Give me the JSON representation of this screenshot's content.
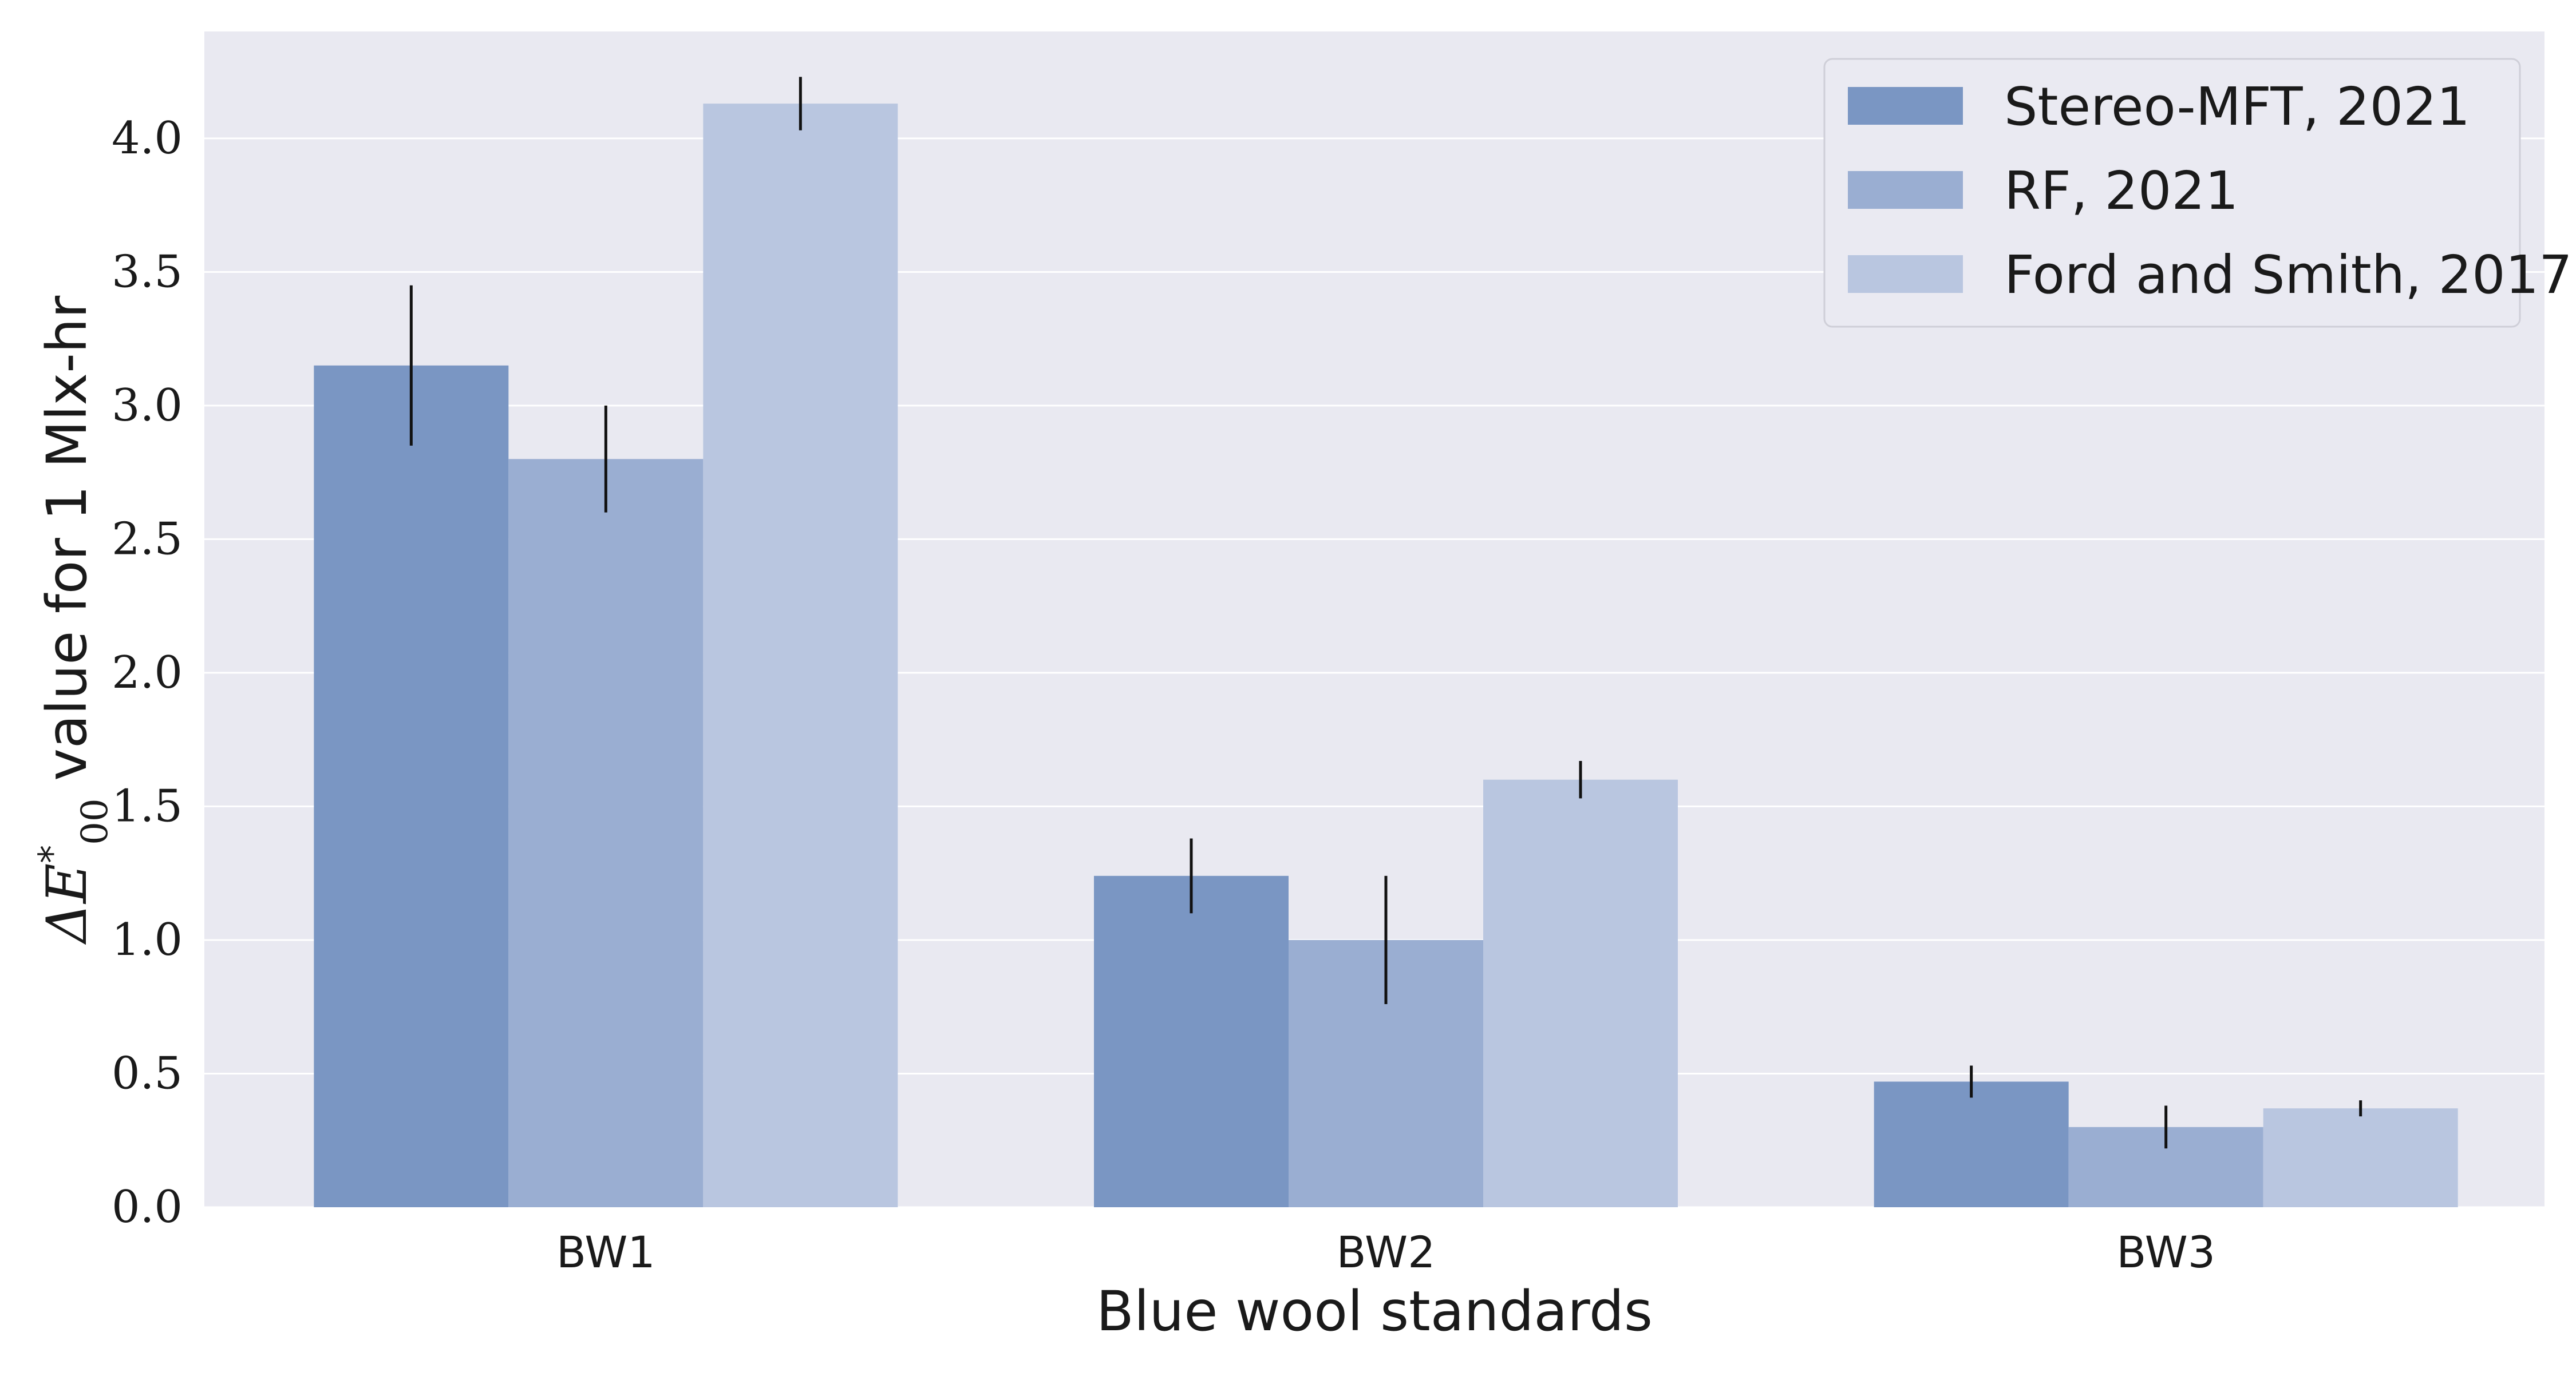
{
  "chart_data": {
    "type": "bar",
    "categories": [
      "BW1",
      "BW2",
      "BW3"
    ],
    "series": [
      {
        "name": "Stereo-MFT, 2021",
        "color": "#7a96c3",
        "values": [
          3.15,
          1.24,
          0.47
        ],
        "errors": [
          0.3,
          0.14,
          0.06
        ]
      },
      {
        "name": "RF, 2021",
        "color": "#9aaed2",
        "values": [
          2.8,
          1.0,
          0.3
        ],
        "errors": [
          0.2,
          0.24,
          0.08
        ]
      },
      {
        "name": "Ford and Smith, 2017",
        "color": "#b9c6e0",
        "values": [
          4.13,
          1.6,
          0.37
        ],
        "errors": [
          0.1,
          0.07,
          0.03
        ]
      }
    ],
    "xlabel": "Blue wool standards",
    "ylabel_prefix": "ΔE",
    "ylabel_superscript": "*",
    "ylabel_subscript": "00",
    "ylabel_suffix": " value for 1 Mlx-hr",
    "ylim": [
      0,
      4.4
    ],
    "yticks": [
      "0.0",
      "0.5",
      "1.0",
      "1.5",
      "2.0",
      "2.5",
      "3.0",
      "3.5",
      "4.0"
    ],
    "grid": true,
    "legend_position": "top-right",
    "background_color": "#e9e9f1",
    "grid_color": "#ffffff"
  }
}
